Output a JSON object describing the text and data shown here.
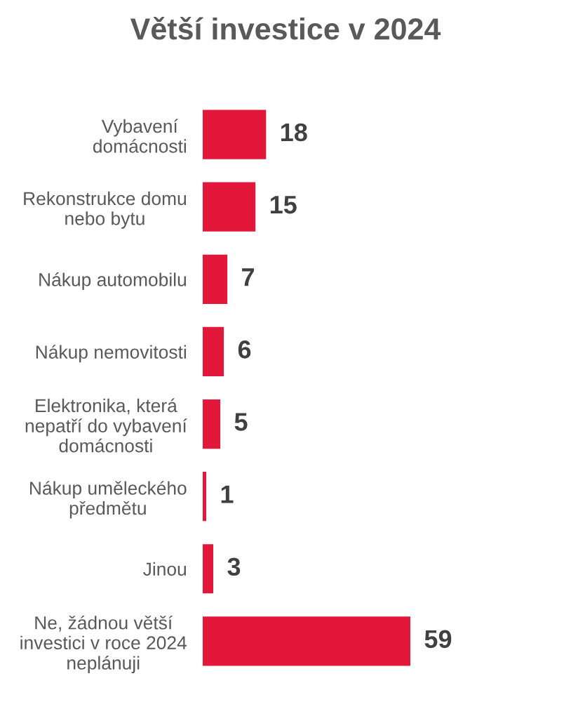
{
  "chart_data": {
    "type": "bar",
    "title": "Větší investice v 2024",
    "orientation": "horizontal",
    "categories": [
      "Vybavení\ndomácnosti",
      "Rekonstrukce domu\nnebo bytu",
      "Nákup automobilu",
      "Nákup nemovitosti",
      "Elektronika, která\nnepatří do vybavení\ndomácnosti",
      "Nákup uměleckého\npředmětu",
      "Jinou",
      "Ne, žádnou větší\ninvestici v roce 2024\nneplánuji"
    ],
    "values": [
      18,
      15,
      7,
      6,
      5,
      1,
      3,
      59
    ],
    "color": "#e3173a",
    "data_labels": true,
    "grid": false,
    "legend": false,
    "tick_labels": "y"
  }
}
